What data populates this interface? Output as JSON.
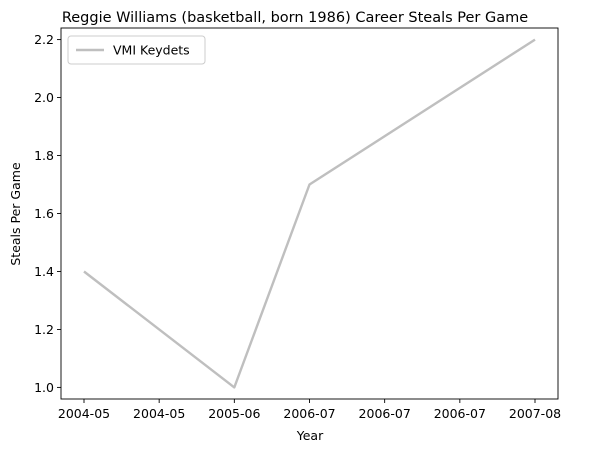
{
  "chart_data": {
    "type": "line",
    "title": "Reggie Williams (basketball, born 1986) Career Steals Per Game",
    "xlabel": "Year",
    "ylabel": "Steals Per Game",
    "x_tick_labels": [
      "2004-05",
      "2004-05",
      "2005-06",
      "2006-07",
      "2006-07",
      "2006-07",
      "2007-08"
    ],
    "y_tick_labels": [
      "1.0",
      "1.2",
      "1.4",
      "1.6",
      "1.8",
      "2.0",
      "2.2"
    ],
    "y_ticks": [
      1.0,
      1.2,
      1.4,
      1.6,
      1.8,
      2.0,
      2.2
    ],
    "ylim": [
      0.96,
      2.24
    ],
    "grid": false,
    "legend_position": "top-left",
    "series": [
      {
        "name": "VMI Keydets",
        "color": "#bfbfbf",
        "x": [
          "2004-05",
          "2005-06",
          "2006-07",
          "2007-08"
        ],
        "values": [
          1.4,
          1.0,
          1.7,
          2.2
        ]
      }
    ]
  }
}
